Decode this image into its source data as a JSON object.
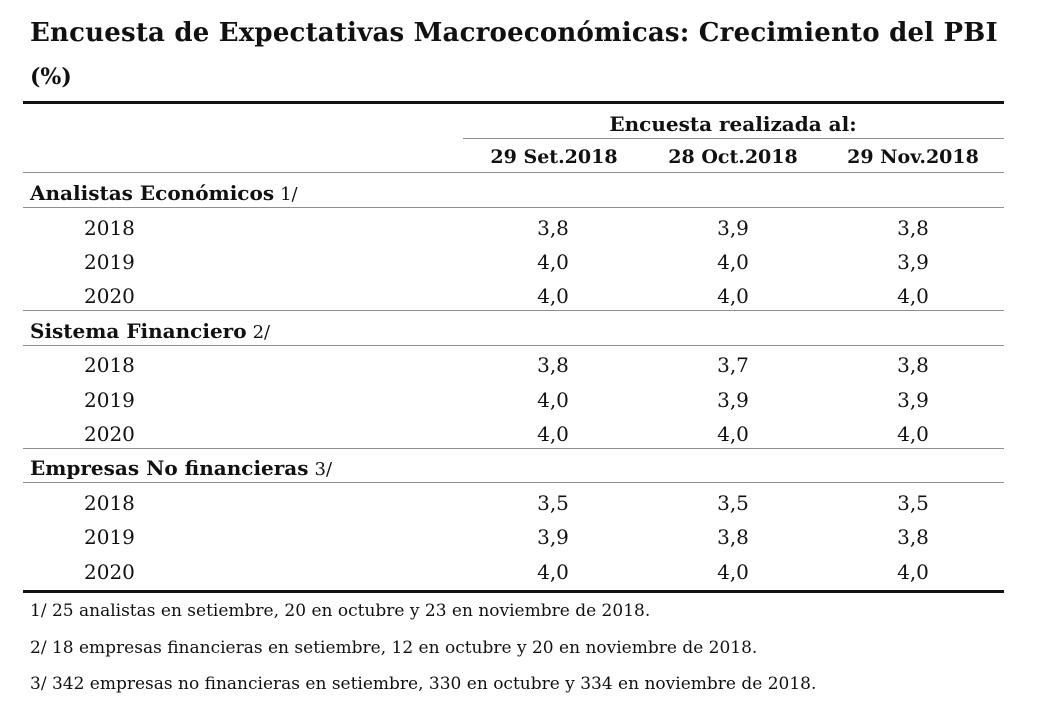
{
  "title": "Encuesta de Expectativas Macroeconómicas: Crecimiento del PBI",
  "unit": "(%)",
  "survey_header": "Encuesta realizada al:",
  "columns": [
    "29 Set.2018",
    "28 Oct.2018",
    "29 Nov.2018"
  ],
  "groups": [
    {
      "label": "Analistas Económicos",
      "note": "1/",
      "rows": [
        {
          "year": "2018",
          "values": [
            "3,8",
            "3,9",
            "3,8"
          ]
        },
        {
          "year": "2019",
          "values": [
            "4,0",
            "4,0",
            "3,9"
          ]
        },
        {
          "year": "2020",
          "values": [
            "4,0",
            "4,0",
            "4,0"
          ]
        }
      ]
    },
    {
      "label": "Sistema Financiero",
      "note": "2/",
      "rows": [
        {
          "year": "2018",
          "values": [
            "3,8",
            "3,7",
            "3,8"
          ]
        },
        {
          "year": "2019",
          "values": [
            "4,0",
            "3,9",
            "3,9"
          ]
        },
        {
          "year": "2020",
          "values": [
            "4,0",
            "4,0",
            "4,0"
          ]
        }
      ]
    },
    {
      "label": "Empresas No financieras",
      "note": "3/",
      "rows": [
        {
          "year": "2018",
          "values": [
            "3,5",
            "3,5",
            "3,5"
          ]
        },
        {
          "year": "2019",
          "values": [
            "3,9",
            "3,8",
            "3,8"
          ]
        },
        {
          "year": "2020",
          "values": [
            "4,0",
            "4,0",
            "4,0"
          ]
        }
      ]
    }
  ],
  "footnotes": [
    "1/ 25 analistas en setiembre, 20 en octubre y 23 en noviembre de 2018.",
    "2/ 18 empresas financieras en setiembre, 12 en octubre y 20 en noviembre de 2018.",
    "3/ 342 empresas no financieras en setiembre, 330 en octubre y 334 en noviembre de 2018."
  ]
}
